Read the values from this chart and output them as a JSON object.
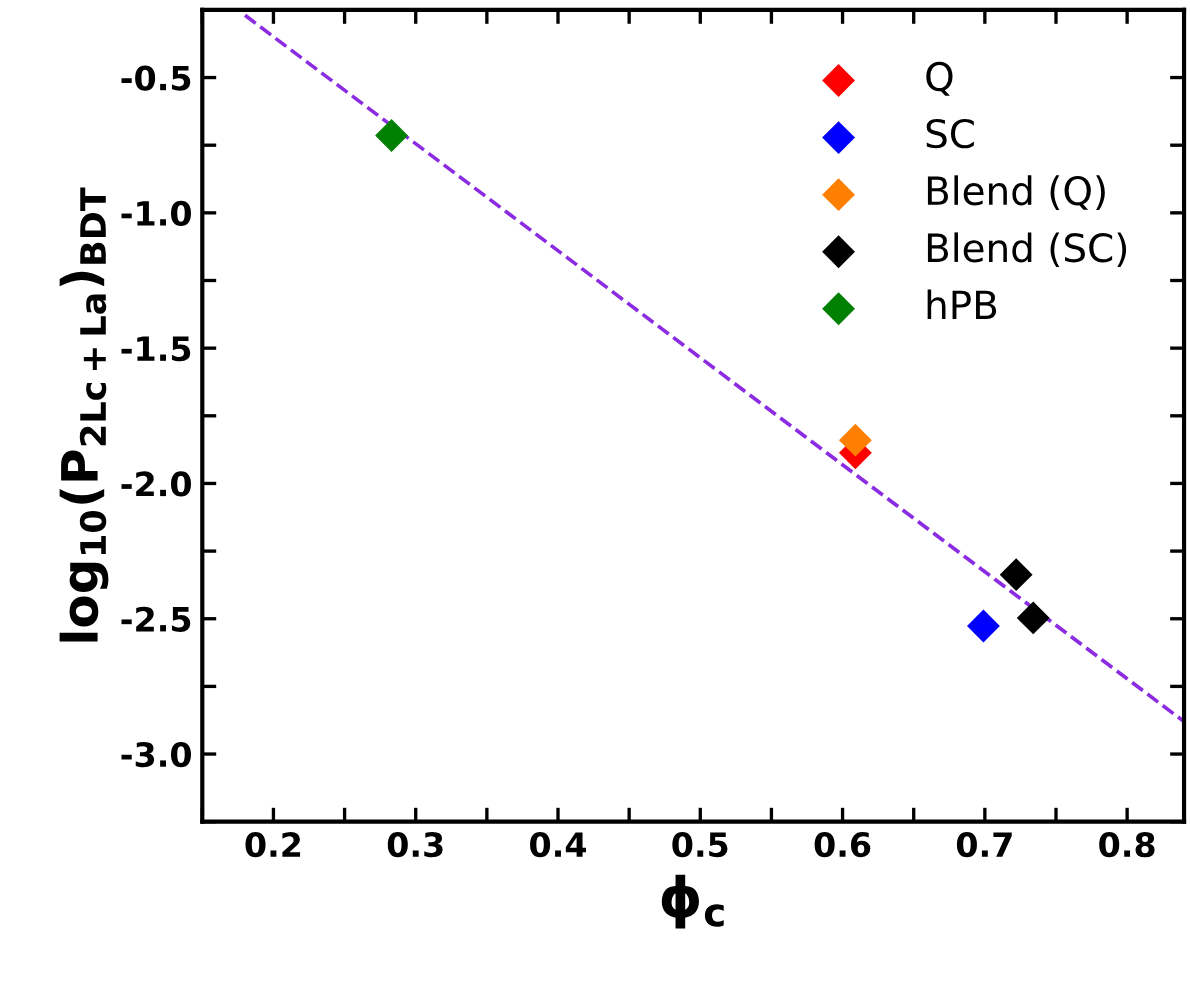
{
  "chart_data": {
    "type": "scatter",
    "xlabel": "ϕ$_{c}$",
    "ylabel": "log$_{10}$(P$_{2Lc+La}$)$_{BDT}$",
    "marker": "diamond",
    "legend": "top right",
    "grid": false,
    "xlim": [
      0.15,
      0.84
    ],
    "ylim": [
      -3.25,
      -0.25
    ],
    "xticks": [
      {
        "value": 0.15,
        "label": null
      },
      0.2,
      {
        "value": 0.25,
        "label": null
      },
      0.3,
      {
        "value": 0.35,
        "label": null
      },
      0.4,
      {
        "value": 0.45,
        "label": null
      },
      0.5,
      {
        "value": 0.55,
        "label": null
      },
      0.6,
      {
        "value": 0.65,
        "label": null
      },
      0.7,
      {
        "value": 0.75,
        "label": null
      },
      0.8
    ],
    "yticks": [
      {
        "value": -3.25,
        "label": null
      },
      {
        "value": -3,
        "label": "-3.0"
      },
      {
        "value": -2.75,
        "label": null
      },
      -2.5,
      {
        "value": -2.25,
        "label": null
      },
      {
        "value": -2,
        "label": "-2.0"
      },
      {
        "value": -1.75,
        "label": null
      },
      -1.5,
      {
        "value": -1.25,
        "label": null
      },
      {
        "value": -1,
        "label": "-1.0"
      },
      {
        "value": -0.75,
        "label": null
      },
      -0.5,
      {
        "value": -0.25,
        "label": null
      }
    ],
    "series": [
      {
        "type": "line",
        "color": "#8b2be2",
        "line_style": "dashed",
        "marker": "none",
        "x": [
          0.18,
          0.84
        ],
        "values": [
          -0.27,
          -2.88
        ]
      },
      {
        "name": "Q",
        "color": "#ff0000",
        "x": [
          0.609
        ],
        "values": [
          -1.887
        ]
      },
      {
        "name": "SC",
        "color": "#0000ff",
        "x": [
          0.699
        ],
        "values": [
          -2.527
        ]
      },
      {
        "name": "Blend (Q)",
        "color": "#ff8000",
        "x": [
          0.609
        ],
        "values": [
          -1.84
        ]
      },
      {
        "name": "Blend (SC)",
        "color": "#000000",
        "x": [
          0.722,
          0.734
        ],
        "values": [
          -2.337,
          -2.497
        ]
      },
      {
        "name": "hPB",
        "color": "#008000",
        "x": [
          0.283
        ],
        "values": [
          -0.714
        ]
      }
    ]
  }
}
